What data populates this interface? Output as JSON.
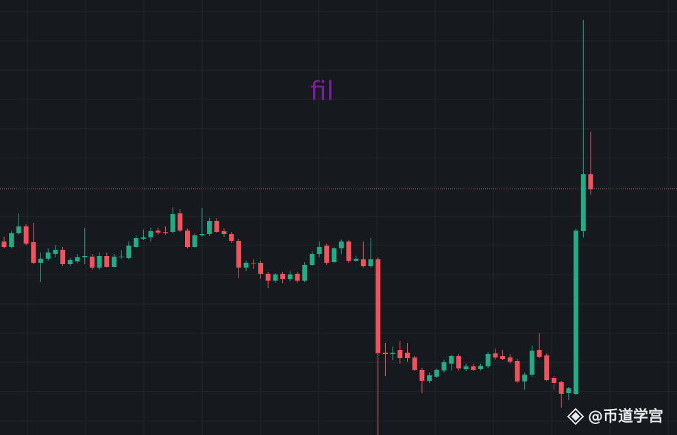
{
  "chart_data": {
    "type": "candlestick",
    "title": "fil",
    "open": [
      282,
      274,
      294,
      304,
      281,
      251,
      257,
      264,
      270,
      249,
      253,
      259,
      260,
      244,
      261,
      245,
      259,
      258,
      274,
      286,
      288,
      298,
      296,
      296,
      323,
      298,
      274,
      291,
      293,
      312,
      297,
      293,
      283,
      244,
      251,
      251,
      235,
      225,
      235,
      227,
      235,
      225,
      248,
      264,
      276,
      252,
      272,
      282,
      254,
      256,
      246,
      256,
      120,
      118,
      124,
      120,
      113,
      95,
      79,
      85,
      94,
      104,
      115,
      96,
      100,
      96,
      100,
      119,
      115,
      113,
      108,
      78,
      88,
      124,
      116,
      83,
      77,
      61,
      60,
      297,
      380
    ],
    "high": [
      289,
      297,
      323,
      307,
      309,
      266,
      272,
      277,
      274,
      258,
      264,
      302,
      264,
      266,
      266,
      264,
      269,
      282,
      291,
      299,
      302,
      302,
      304,
      332,
      329,
      301,
      294,
      331,
      316,
      316,
      301,
      296,
      286,
      254,
      256,
      254,
      238,
      236,
      238,
      239,
      238,
      252,
      268,
      282,
      279,
      274,
      285,
      284,
      261,
      282,
      287,
      259,
      134,
      129,
      137,
      134,
      116,
      98,
      91,
      97,
      110,
      117,
      118,
      104,
      104,
      104,
      121,
      126,
      124,
      118,
      111,
      91,
      131,
      148,
      119,
      86,
      79,
      70,
      301,
      605,
      442
    ],
    "low": [
      272,
      272,
      292,
      277,
      249,
      223,
      254,
      259,
      246,
      246,
      250,
      249,
      241,
      241,
      244,
      244,
      257,
      256,
      272,
      284,
      282,
      292,
      292,
      294,
      296,
      272,
      272,
      289,
      290,
      294,
      289,
      280,
      229,
      239,
      242,
      228,
      214,
      222,
      221,
      224,
      222,
      223,
      246,
      259,
      248,
      250,
      264,
      251,
      252,
      244,
      244,
      0,
      86,
      109,
      104,
      107,
      93,
      61,
      76,
      83,
      91,
      94,
      94,
      93,
      93,
      94,
      97,
      110,
      109,
      104,
      76,
      66,
      85,
      112,
      78,
      66,
      40,
      51,
      58,
      288,
      350
    ],
    "close": [
      274,
      294,
      304,
      279,
      251,
      257,
      266,
      270,
      249,
      255,
      259,
      261,
      244,
      261,
      245,
      260,
      260,
      276,
      287,
      288,
      297,
      295,
      295,
      322,
      298,
      274,
      291,
      293,
      312,
      296,
      293,
      283,
      244,
      251,
      250,
      235,
      225,
      234,
      227,
      234,
      225,
      248,
      264,
      274,
      251,
      272,
      282,
      254,
      257,
      246,
      256,
      119,
      118,
      120,
      112,
      112,
      95,
      79,
      87,
      95,
      106,
      115,
      97,
      100,
      95,
      101,
      118,
      113,
      111,
      107,
      78,
      88,
      123,
      114,
      80,
      76,
      60,
      68,
      298,
      380,
      358
    ],
    "up_color": "#22ab85",
    "down_color": "#f0535b",
    "ylim": [
      0,
      634
    ],
    "grid": true,
    "price_line": 359,
    "price_line_color": "#c8684a"
  },
  "watermark": "@币道学宫"
}
